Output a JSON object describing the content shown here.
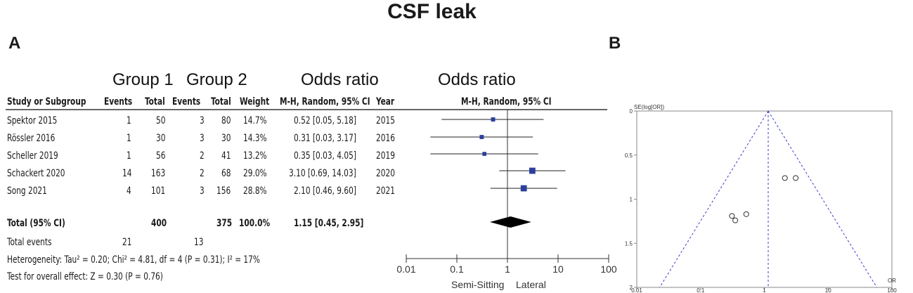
{
  "title": "CSF leak",
  "panel_a": "A",
  "panel_b": "B",
  "group_headers": {
    "group1": "Group 1",
    "group2": "Group 2",
    "or_text": "Odds ratio",
    "or_plot": "Odds ratio"
  },
  "columns": {
    "study": "Study or Subgroup",
    "events1": "Events",
    "total1": "Total",
    "events2": "Events",
    "total2": "Total",
    "weight": "Weight",
    "ci": "M-H, Random, 95% CI",
    "year": "Year",
    "plot": "M-H, Random, 95% CI"
  },
  "rows": [
    {
      "study": "Spektor 2015",
      "e1": "1",
      "t1": "50",
      "e2": "3",
      "t2": "80",
      "w": "14.7%",
      "ci": "0.52 [0.05, 5.18]",
      "year": "2015"
    },
    {
      "study": "Rössler 2016",
      "e1": "1",
      "t1": "30",
      "e2": "3",
      "t2": "30",
      "w": "14.3%",
      "ci": "0.31 [0.03, 3.17]",
      "year": "2016"
    },
    {
      "study": "Scheller 2019",
      "e1": "1",
      "t1": "56",
      "e2": "2",
      "t2": "41",
      "w": "13.2%",
      "ci": "0.35 [0.03, 4.05]",
      "year": "2019"
    },
    {
      "study": "Schackert 2020",
      "e1": "14",
      "t1": "163",
      "e2": "2",
      "t2": "68",
      "w": "29.0%",
      "ci": "3.10 [0.69, 14.03]",
      "year": "2020"
    },
    {
      "study": "Song 2021",
      "e1": "4",
      "t1": "101",
      "e2": "3",
      "t2": "156",
      "w": "28.8%",
      "ci": "2.10 [0.46, 9.60]",
      "year": "2021"
    }
  ],
  "total": {
    "label": "Total (95% CI)",
    "t1": "400",
    "t2": "375",
    "w": "100.0%",
    "ci": "1.15 [0.45, 2.95]"
  },
  "total_events": {
    "label": "Total events",
    "e1": "21",
    "e2": "13"
  },
  "heterogeneity": "Heterogeneity: Tau² = 0.20; Chi² = 4.81, df = 4 (P = 0.31); I² = 17%",
  "overall_effect": "Test for overall effect: Z = 0.30 (P = 0.76)",
  "favours": {
    "left": "Semi-Sitting",
    "right": "Lateral"
  },
  "colors": {
    "marker": "#2b3f9e",
    "funnel": "#3b3bc8",
    "text": "#1a1a1a"
  },
  "chart_data": [
    {
      "type": "forest",
      "scale": "log",
      "x_ticks": [
        "0.01",
        "0.1",
        "1",
        "10",
        "100"
      ],
      "studies": [
        {
          "name": "Spektor 2015",
          "or": 0.52,
          "lo": 0.05,
          "hi": 5.18,
          "weight": 14.7
        },
        {
          "name": "Rössler 2016",
          "or": 0.31,
          "lo": 0.03,
          "hi": 3.17,
          "weight": 14.3
        },
        {
          "name": "Scheller 2019",
          "or": 0.35,
          "lo": 0.03,
          "hi": 4.05,
          "weight": 13.2
        },
        {
          "name": "Schackert 2020",
          "or": 3.1,
          "lo": 0.69,
          "hi": 14.03,
          "weight": 29.0
        },
        {
          "name": "Song 2021",
          "or": 2.1,
          "lo": 0.46,
          "hi": 9.6,
          "weight": 28.8
        }
      ],
      "pooled": {
        "or": 1.15,
        "lo": 0.45,
        "hi": 2.95
      }
    },
    {
      "type": "scatter",
      "ylabel": "SE(log[OR])",
      "xlabel": "OR",
      "x_scale": "log",
      "xlim": [
        0.01,
        100
      ],
      "ylim": [
        2,
        0
      ],
      "x_ticks": [
        "0.01",
        "0.1",
        "1",
        "10",
        "100"
      ],
      "y_ticks": [
        "0",
        "0.5",
        "1",
        "1.5",
        "2"
      ],
      "summary_or": 1.15,
      "points": [
        {
          "x": 0.52,
          "y": 1.17
        },
        {
          "x": 0.31,
          "y": 1.19
        },
        {
          "x": 0.35,
          "y": 1.24
        },
        {
          "x": 3.1,
          "y": 0.76
        },
        {
          "x": 2.1,
          "y": 0.76
        }
      ]
    }
  ]
}
